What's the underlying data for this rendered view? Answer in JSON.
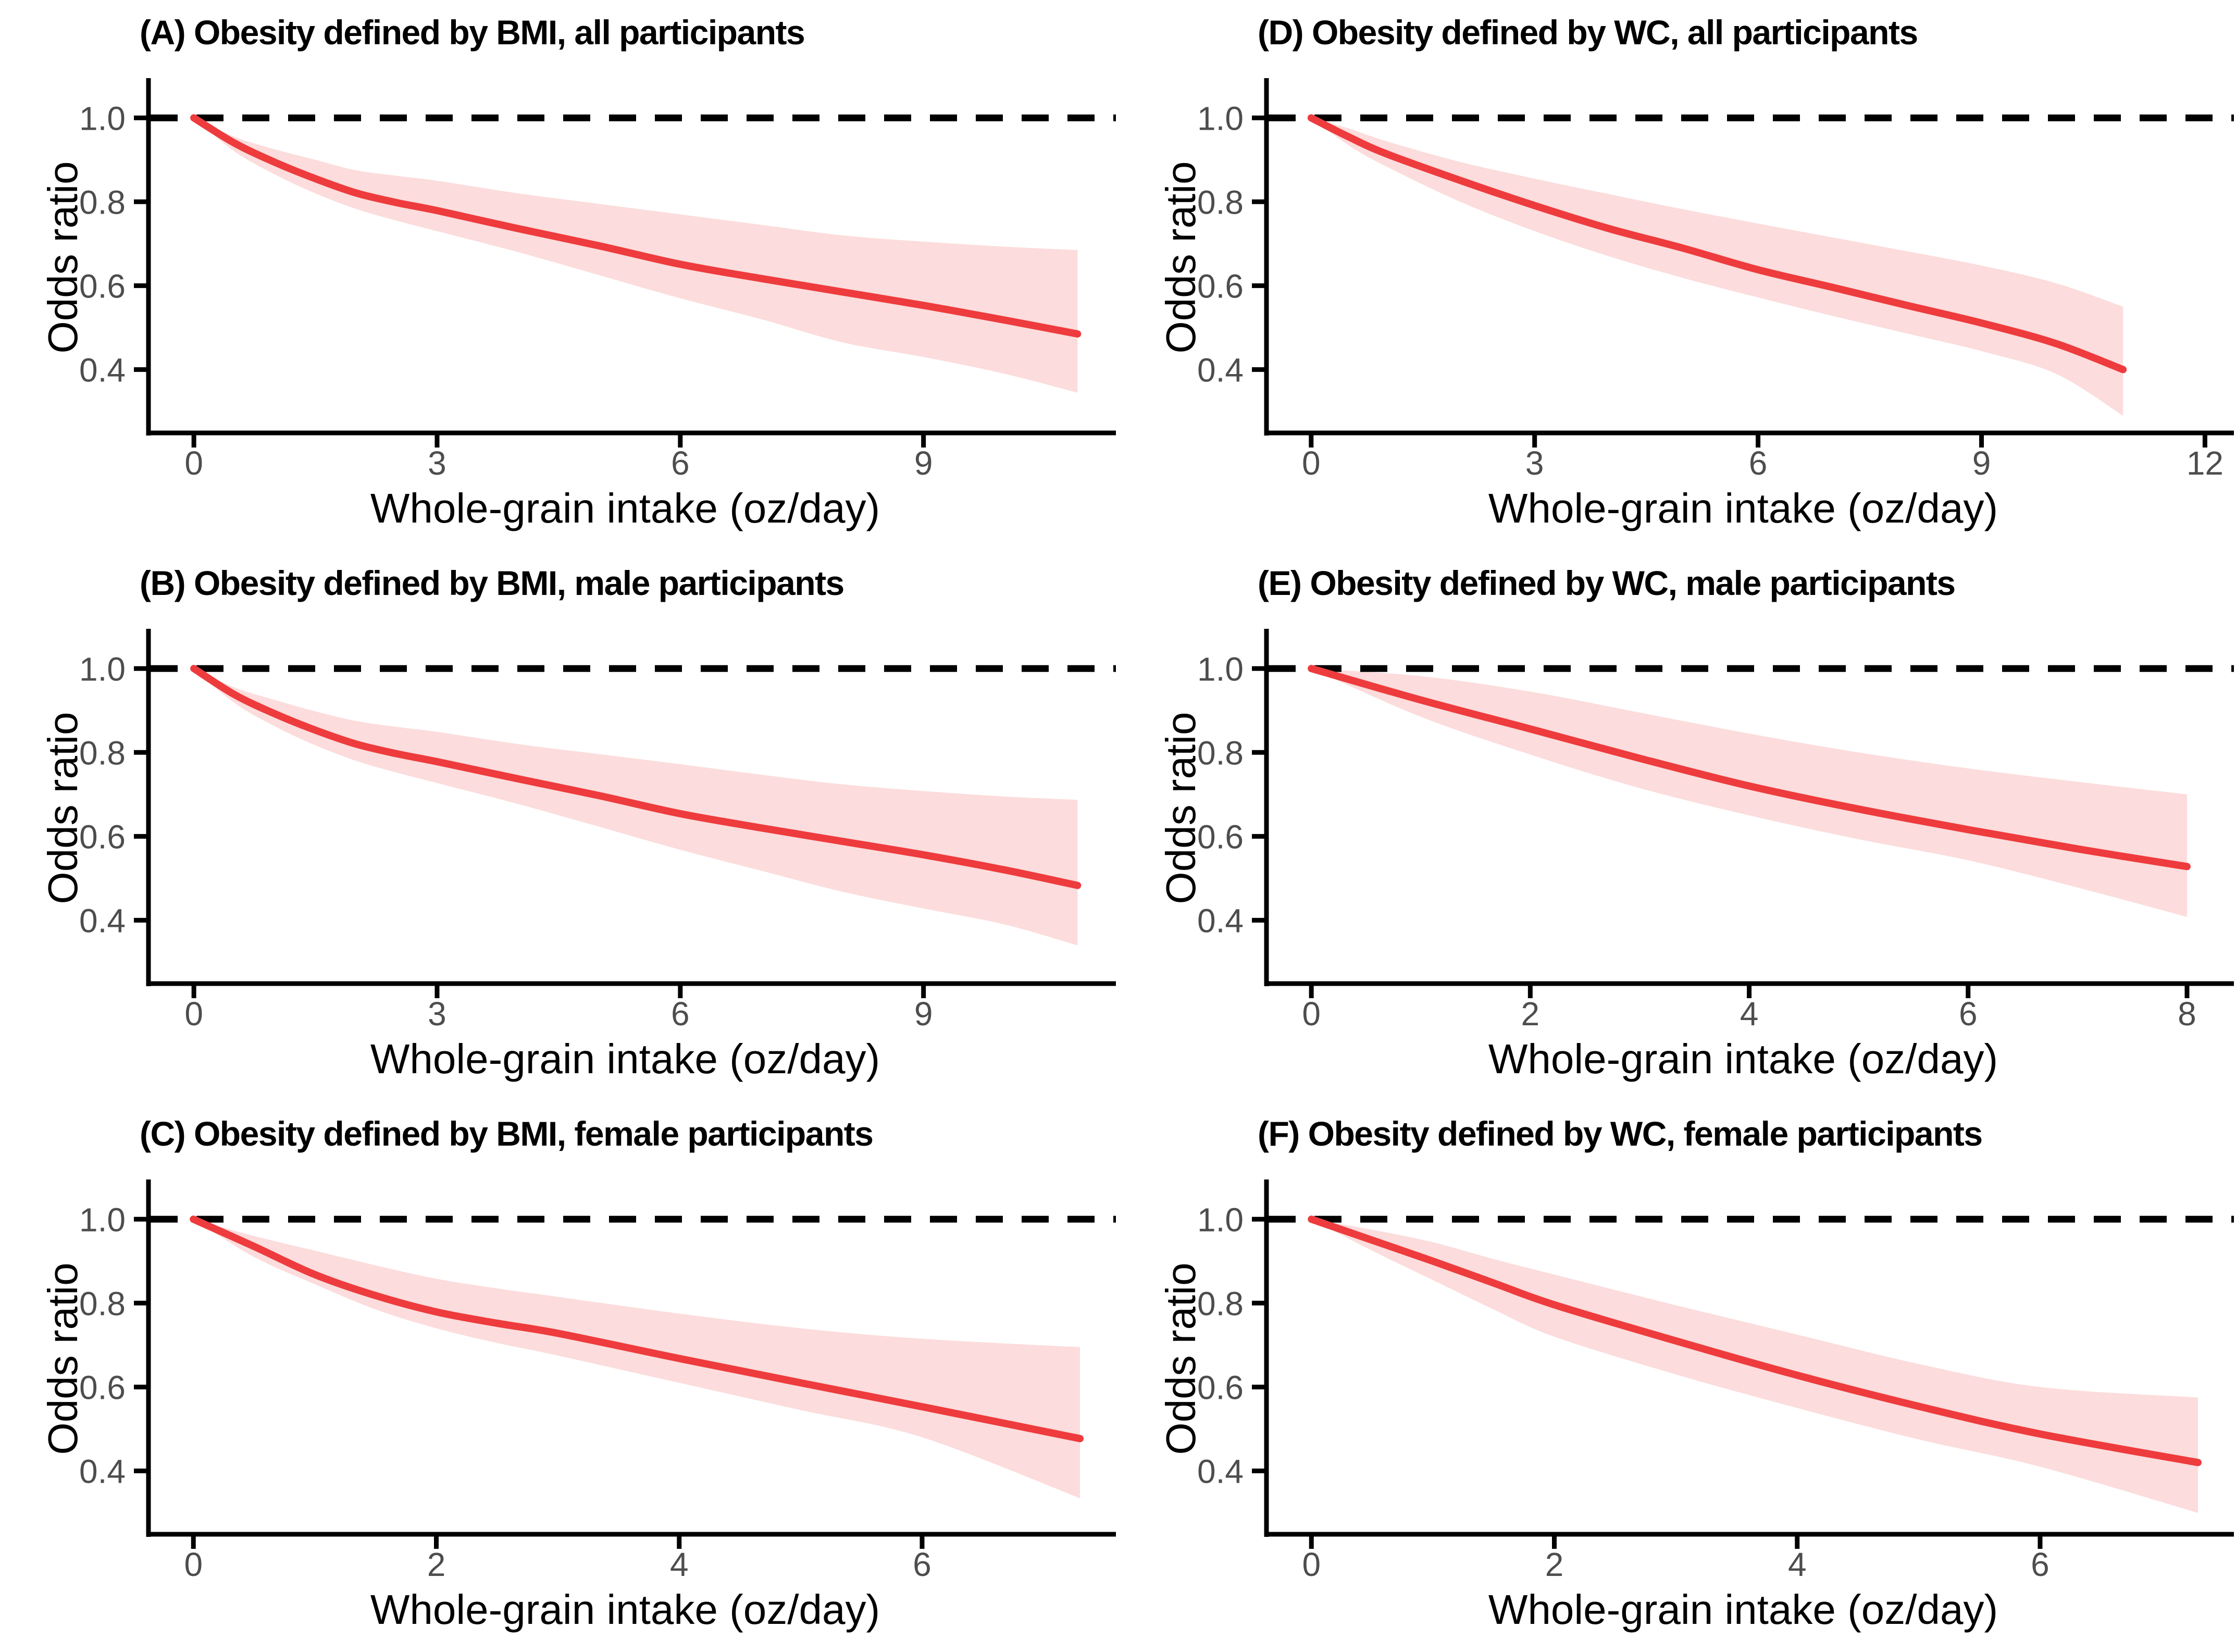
{
  "figure": {
    "kind": "six-panel dose-response figure",
    "axis_color": "#000000",
    "tick_label_color": "#4d4d4d",
    "background": "#ffffff"
  },
  "chart_data": [
    {
      "id": "A",
      "type": "line",
      "title": "(A) Obesity defined by BMI, all participants",
      "xlabel": "Whole-grain intake (oz/day)",
      "ylabel": "Odds ratio",
      "x_ticks": [
        0,
        3,
        6,
        9
      ],
      "y_ticks": [
        0.4,
        0.6,
        0.8,
        1.0
      ],
      "y_tick_labels": [
        "0.4",
        "0.6",
        "0.8",
        "1.0"
      ],
      "xlim": [
        -0.56,
        11.2
      ],
      "ylim": [
        0.249,
        1.086
      ],
      "reference_line": {
        "value": 1.0,
        "style": "dashed",
        "color": "#000000"
      },
      "line_color": "#ee3b3d",
      "band_color": "#fcdcdc",
      "legend": "none",
      "series": {
        "name": "Odds ratio with 95% CI",
        "x": [
          0,
          0.5,
          1,
          1.5,
          2,
          2.5,
          3,
          4,
          5,
          6,
          7,
          8,
          9,
          10,
          10.9
        ],
        "or": [
          1.0,
          0.94,
          0.894,
          0.855,
          0.821,
          0.798,
          0.779,
          0.736,
          0.695,
          0.651,
          0.617,
          0.585,
          0.553,
          0.518,
          0.485
        ],
        "lo": [
          1.0,
          0.92,
          0.865,
          0.82,
          0.783,
          0.755,
          0.73,
          0.68,
          0.625,
          0.57,
          0.52,
          0.465,
          0.43,
          0.39,
          0.345
        ],
        "hi": [
          1.0,
          0.955,
          0.925,
          0.9,
          0.875,
          0.862,
          0.85,
          0.82,
          0.795,
          0.77,
          0.745,
          0.72,
          0.705,
          0.693,
          0.685
        ]
      }
    },
    {
      "id": "D",
      "type": "line",
      "title": "(D) Obesity defined by WC, all participants",
      "xlabel": "Whole-grain intake (oz/day)",
      "ylabel": "Odds ratio",
      "x_ticks": [
        0,
        3,
        6,
        9,
        12
      ],
      "y_ticks": [
        0.4,
        0.6,
        0.8,
        1.0
      ],
      "y_tick_labels": [
        "0.4",
        "0.6",
        "0.8",
        "1.0"
      ],
      "xlim": [
        -0.6,
        12.2
      ],
      "ylim": [
        0.249,
        1.086
      ],
      "reference_line": {
        "value": 1.0,
        "style": "dashed",
        "color": "#000000"
      },
      "line_color": "#ee3b3d",
      "band_color": "#fcdcdc",
      "legend": "none",
      "series": {
        "name": "Odds ratio with 95% CI",
        "x": [
          0,
          0.5,
          1,
          2,
          3,
          4,
          5,
          6,
          7,
          8,
          9,
          10,
          10.9
        ],
        "or": [
          1.0,
          0.955,
          0.915,
          0.851,
          0.791,
          0.736,
          0.689,
          0.638,
          0.596,
          0.553,
          0.511,
          0.462,
          0.4
        ],
        "lo": [
          1.0,
          0.935,
          0.885,
          0.8,
          0.73,
          0.67,
          0.618,
          0.572,
          0.528,
          0.486,
          0.444,
          0.39,
          0.29
        ],
        "hi": [
          1.0,
          0.975,
          0.945,
          0.895,
          0.855,
          0.818,
          0.782,
          0.748,
          0.715,
          0.682,
          0.648,
          0.606,
          0.55
        ]
      }
    },
    {
      "id": "B",
      "type": "line",
      "title": "(B) Obesity defined by BMI, male participants",
      "xlabel": "Whole-grain intake (oz/day)",
      "ylabel": "Odds ratio",
      "x_ticks": [
        0,
        3,
        6,
        9
      ],
      "y_ticks": [
        0.4,
        0.6,
        0.8,
        1.0
      ],
      "y_tick_labels": [
        "0.4",
        "0.6",
        "0.8",
        "1.0"
      ],
      "xlim": [
        -0.56,
        11.2
      ],
      "ylim": [
        0.249,
        1.086
      ],
      "reference_line": {
        "value": 1.0,
        "style": "dashed",
        "color": "#000000"
      },
      "line_color": "#ee3b3d",
      "band_color": "#fcdcdc",
      "legend": "none",
      "series": {
        "name": "Odds ratio with 95% CI",
        "x": [
          0,
          0.5,
          1,
          1.5,
          2,
          2.5,
          3,
          4,
          5,
          6,
          7,
          8,
          9,
          10,
          10.9
        ],
        "or": [
          1.0,
          0.938,
          0.892,
          0.853,
          0.82,
          0.797,
          0.778,
          0.737,
          0.697,
          0.654,
          0.62,
          0.588,
          0.556,
          0.52,
          0.483
        ],
        "lo": [
          1.0,
          0.918,
          0.862,
          0.817,
          0.78,
          0.752,
          0.727,
          0.677,
          0.623,
          0.568,
          0.518,
          0.468,
          0.428,
          0.39,
          0.34
        ],
        "hi": [
          1.0,
          0.955,
          0.925,
          0.898,
          0.875,
          0.861,
          0.849,
          0.82,
          0.796,
          0.772,
          0.747,
          0.724,
          0.708,
          0.695,
          0.687
        ]
      }
    },
    {
      "id": "E",
      "type": "line",
      "title": "(E) Obesity defined by WC, male participants",
      "xlabel": "Whole-grain intake (oz/day)",
      "ylabel": "Odds ratio",
      "x_ticks": [
        0,
        2,
        4,
        6,
        8
      ],
      "y_ticks": [
        0.4,
        0.6,
        0.8,
        1.0
      ],
      "y_tick_labels": [
        "0.4",
        "0.6",
        "0.8",
        "1.0"
      ],
      "xlim": [
        -0.41,
        8.3
      ],
      "ylim": [
        0.249,
        1.086
      ],
      "reference_line": {
        "value": 1.0,
        "style": "dashed",
        "color": "#000000"
      },
      "line_color": "#ee3b3d",
      "band_color": "#fcdcdc",
      "legend": "none",
      "series": {
        "name": "Odds ratio with 95% CI",
        "x": [
          0,
          1,
          2,
          3,
          4,
          5,
          6,
          7,
          8
        ],
        "or": [
          1.0,
          0.925,
          0.856,
          0.786,
          0.72,
          0.665,
          0.616,
          0.57,
          0.528
        ],
        "lo": [
          1.0,
          0.885,
          0.795,
          0.715,
          0.65,
          0.593,
          0.543,
          0.478,
          0.408
        ],
        "hi": [
          1.0,
          0.982,
          0.945,
          0.895,
          0.845,
          0.8,
          0.762,
          0.73,
          0.7
        ]
      }
    },
    {
      "id": "C",
      "type": "line",
      "title": "(C) Obesity defined by BMI, female participants",
      "xlabel": "Whole-grain intake (oz/day)",
      "ylabel": "Odds ratio",
      "x_ticks": [
        0,
        2,
        4,
        6
      ],
      "y_ticks": [
        0.4,
        0.6,
        0.8,
        1.0
      ],
      "y_tick_labels": [
        "0.4",
        "0.6",
        "0.8",
        "1.0"
      ],
      "xlim": [
        -0.37,
        7.48
      ],
      "ylim": [
        0.249,
        1.086
      ],
      "reference_line": {
        "value": 1.0,
        "style": "dashed",
        "color": "#000000"
      },
      "line_color": "#ee3b3d",
      "band_color": "#fcdcdc",
      "legend": "none",
      "series": {
        "name": "Odds ratio with 95% CI",
        "x": [
          0,
          0.5,
          1,
          1.5,
          2,
          2.5,
          3,
          4,
          5,
          6,
          7.3
        ],
        "or": [
          1.0,
          0.935,
          0.868,
          0.818,
          0.779,
          0.752,
          0.728,
          0.668,
          0.61,
          0.553,
          0.477
        ],
        "lo": [
          1.0,
          0.91,
          0.845,
          0.785,
          0.74,
          0.705,
          0.675,
          0.61,
          0.545,
          0.48,
          0.335
        ],
        "hi": [
          1.0,
          0.96,
          0.925,
          0.89,
          0.858,
          0.835,
          0.815,
          0.775,
          0.74,
          0.715,
          0.695
        ]
      }
    },
    {
      "id": "F",
      "type": "line",
      "title": "(F) Obesity defined by WC, female participants",
      "xlabel": "Whole-grain intake (oz/day)",
      "ylabel": "Odds ratio",
      "x_ticks": [
        0,
        2,
        4,
        6
      ],
      "y_ticks": [
        0.4,
        0.6,
        0.8,
        1.0
      ],
      "y_tick_labels": [
        "0.4",
        "0.6",
        "0.8",
        "1.0"
      ],
      "xlim": [
        -0.37,
        7.48
      ],
      "ylim": [
        0.249,
        1.086
      ],
      "reference_line": {
        "value": 1.0,
        "style": "dashed",
        "color": "#000000"
      },
      "line_color": "#ee3b3d",
      "band_color": "#fcdcdc",
      "legend": "none",
      "series": {
        "name": "Odds ratio with 95% CI",
        "x": [
          0,
          0.5,
          1,
          1.5,
          2,
          3,
          4,
          5,
          6,
          7.3
        ],
        "or": [
          1.0,
          0.95,
          0.9,
          0.848,
          0.796,
          0.71,
          0.628,
          0.554,
          0.488,
          0.42
        ],
        "lo": [
          1.0,
          0.925,
          0.855,
          0.785,
          0.72,
          0.63,
          0.55,
          0.475,
          0.41,
          0.3
        ],
        "hi": [
          1.0,
          0.975,
          0.945,
          0.905,
          0.868,
          0.795,
          0.725,
          0.655,
          0.6,
          0.575
        ]
      }
    }
  ]
}
